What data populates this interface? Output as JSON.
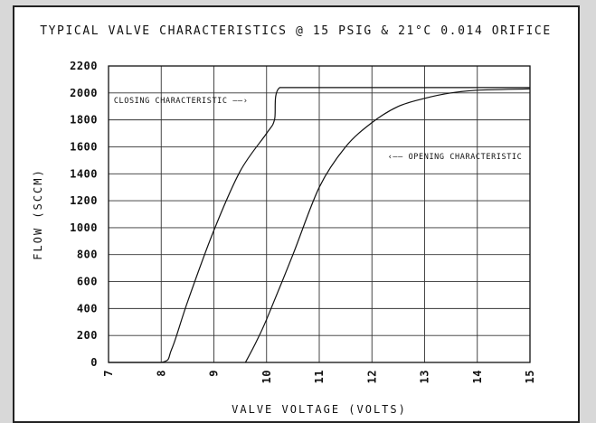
{
  "chart_data": {
    "type": "line",
    "title": "TYPICAL VALVE CHARACTERISTICS @ 15 PSIG & 21°C 0.014 ORIFICE",
    "xlabel": "VALVE VOLTAGE (VOLTS)",
    "ylabel": "FLOW (SCCM)",
    "xlim": [
      7,
      15
    ],
    "ylim": [
      0,
      2200
    ],
    "xticks": [
      7,
      8,
      9,
      10,
      11,
      12,
      13,
      14,
      15
    ],
    "yticks": [
      0,
      200,
      400,
      600,
      800,
      1000,
      1200,
      1400,
      1600,
      1800,
      2000,
      2200
    ],
    "grid": true,
    "series": [
      {
        "name": "CLOSING CHARACTERISTIC",
        "x": [
          7,
          8.0,
          8.2,
          8.5,
          9.0,
          9.5,
          10.0,
          10.15,
          10.25,
          11,
          12,
          13,
          14,
          15
        ],
        "y": [
          0,
          0,
          100,
          450,
          980,
          1420,
          1700,
          1800,
          2040,
          2040,
          2040,
          2040,
          2040,
          2040
        ]
      },
      {
        "name": "OPENING CHARACTERISTIC",
        "x": [
          9.6,
          9.8,
          10.0,
          10.5,
          11.0,
          11.5,
          12.0,
          12.5,
          13.0,
          13.5,
          14.0,
          15.0
        ],
        "y": [
          0,
          150,
          320,
          800,
          1300,
          1600,
          1780,
          1900,
          1960,
          2000,
          2020,
          2030
        ]
      }
    ],
    "annotations": [
      {
        "text": "CLOSING CHARACTERISTIC ——›",
        "x": 7.1,
        "y": 1945
      },
      {
        "text": "‹—— OPENING CHARACTERISTIC",
        "x": 12.3,
        "y": 1530
      }
    ]
  }
}
